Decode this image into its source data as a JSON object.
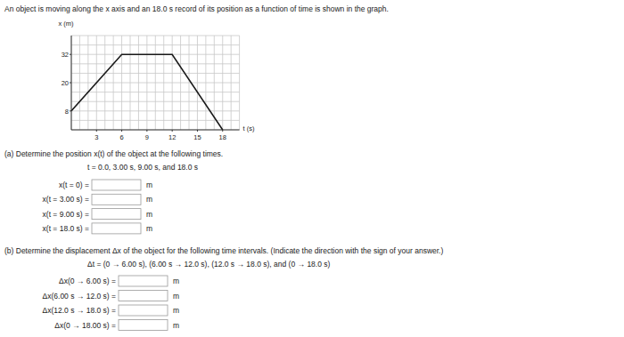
{
  "intro": "An object is moving along the x axis and an 18.0 s record of its position as a function of time is shown in the graph.",
  "chart_data": {
    "type": "line",
    "x_label": "t (s)",
    "y_label": "x (m)",
    "x": [
      0,
      6,
      12,
      18
    ],
    "values": [
      8,
      32,
      32,
      0
    ],
    "color": "#1a1a1a",
    "xlim": [
      0,
      20
    ],
    "ylim": [
      0,
      40
    ],
    "xticks": [
      3,
      6,
      9,
      12,
      15,
      18
    ],
    "yticks": [
      8,
      20,
      32
    ],
    "grid": true
  },
  "part_a": {
    "prompt": "(a) Determine the position x(t) of the object at the following times.",
    "times": "t = 0.0, 3.00 s, 9.00 s, and 18.0 s",
    "rows": [
      {
        "label": "x(t = 0) =",
        "unit": "m"
      },
      {
        "label": "x(t = 3.00 s) =",
        "unit": "m"
      },
      {
        "label": "x(t = 9.00 s) =",
        "unit": "m"
      },
      {
        "label": "x(t = 18.0 s) =",
        "unit": "m"
      }
    ]
  },
  "part_b": {
    "prompt": "(b) Determine the displacement Δx of the object for the following time intervals. (Indicate the direction with the sign of your answer.)",
    "intervals": "Δt = (0 → 6.00 s), (6.00 s → 12.0 s), (12.0 s → 18.0 s), and (0 → 18.0 s)",
    "rows": [
      {
        "label": "Δx(0 → 6.00 s) =",
        "unit": "m"
      },
      {
        "label": "Δx(6.00 s → 12.0 s) =",
        "unit": "m"
      },
      {
        "label": "Δx(12.0 s → 18.0 s) =",
        "unit": "m"
      },
      {
        "label": "Δx(0 → 18.00 s) =",
        "unit": "m"
      }
    ]
  }
}
